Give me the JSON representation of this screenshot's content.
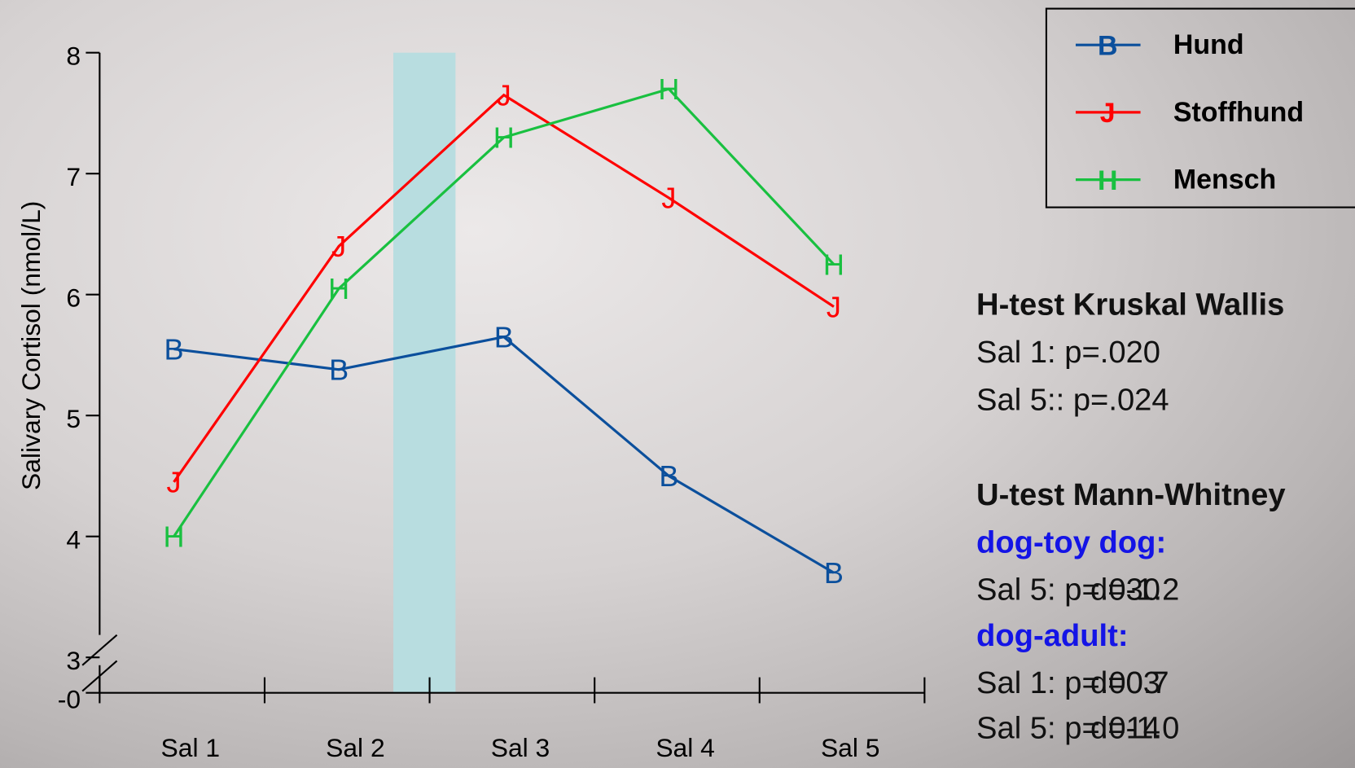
{
  "chart_data": {
    "type": "line",
    "y_label": "Salivary Cortisol (nmol/L)",
    "categories": [
      "Sal 1",
      "Sal 2",
      "Sal 3",
      "Sal 4",
      "Sal 5"
    ],
    "series": [
      {
        "name": "Hund",
        "marker": "B",
        "color": "#0b4f9c",
        "values": [
          5.55,
          5.38,
          5.65,
          4.5,
          3.7
        ]
      },
      {
        "name": "Stoffhund",
        "marker": "J",
        "color": "#ff0000",
        "values": [
          4.45,
          6.4,
          7.65,
          6.8,
          5.9
        ]
      },
      {
        "name": "Mensch",
        "marker": "H",
        "color": "#19c040",
        "values": [
          4.0,
          6.05,
          7.3,
          7.7,
          6.25
        ]
      }
    ],
    "ylim": [
      3,
      8
    ],
    "yticks": [
      3,
      4,
      5,
      6,
      7,
      8
    ],
    "y_break_tick": {
      "value": 0,
      "label": "-0"
    },
    "legend": "top-right"
  },
  "stats": {
    "kruskal": {
      "title": "H-test Kruskal Wallis",
      "lines": [
        "Sal 1: p=.020",
        "Sal 5:: p=.024"
      ]
    },
    "mann_whitney": {
      "title": "U-test Mann-Whitney",
      "groups": [
        {
          "title": "dog-toy dog:",
          "rows": [
            [
              "Sal 5: p=.030",
              "d=-1.2"
            ]
          ]
        },
        {
          "title": "dog-adult:",
          "rows": [
            [
              "Sal 1: p=.003",
              "d=0.7"
            ],
            [
              "Sal 5: p=.014",
              "d=-1.0"
            ]
          ]
        }
      ]
    }
  }
}
